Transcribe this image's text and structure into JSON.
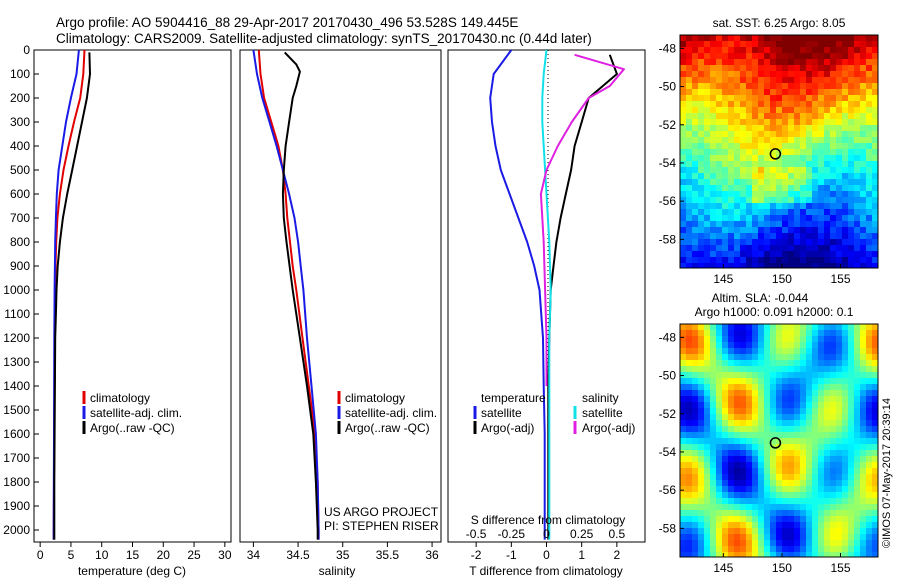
{
  "header": {
    "line1": "Argo profile: AO 5904416_88 29-Apr-2017 20170430_496 53.528S 149.445E",
    "line2": "Climatology: CARS2009. Satellite-adjusted climatology: synTS_20170430.nc (0.44d later)"
  },
  "colors": {
    "climatology": "#e00000",
    "satellite": "#1a1ae6",
    "argo": "#000000",
    "argo_salinity_diff": "#e020e0",
    "sat_salinity_diff": "#10e0e8"
  },
  "credits": {
    "project": "US ARGO PROJECT",
    "pi": "PI: STEPHEN RISER",
    "timestamp": "©IMOS 07-May-2017 20:39:14"
  },
  "maps": {
    "sst_title": "sat. SST: 6.25 Argo: 8.05",
    "sla_title1": "Altim. SLA: -0.044",
    "sla_title2": "Argo h1000: 0.091 h2000: 0.1",
    "lat_ticks": [
      "-48",
      "-50",
      "-52",
      "-54",
      "-56",
      "-58"
    ],
    "lon_ticks": [
      "145",
      "150",
      "155"
    ],
    "float_lon": 149.445,
    "float_lat": -53.528
  },
  "chart_data": [
    {
      "type": "line",
      "ylabel": "",
      "xlabel": "temperature (deg C)",
      "xlim": [
        -1,
        31
      ],
      "ylim": [
        2050,
        0
      ],
      "xticks": [
        "0",
        "5",
        "10",
        "15",
        "20",
        "25",
        "30"
      ],
      "yticks": [
        "0",
        "100",
        "200",
        "300",
        "400",
        "500",
        "600",
        "700",
        "800",
        "900",
        "1000",
        "1100",
        "1200",
        "1300",
        "1400",
        "1500",
        "1600",
        "1700",
        "1800",
        "1900",
        "2000"
      ],
      "legend": [
        "climatology",
        "satellite-adj. clim.",
        "Argo(..raw -QC)"
      ],
      "series": [
        {
          "name": "climatology",
          "color": "#e00000",
          "x": [
            7.2,
            7.0,
            6.5,
            5.5,
            4.6,
            3.8,
            3.2,
            2.8,
            2.6,
            2.5,
            2.45,
            2.4,
            2.35,
            2.3,
            2.25,
            2.2,
            2.2
          ],
          "y": [
            0,
            100,
            200,
            300,
            400,
            500,
            600,
            700,
            800,
            900,
            1000,
            1200,
            1400,
            1600,
            1800,
            2000,
            2040
          ]
        },
        {
          "name": "satellite-adj. clim.",
          "color": "#1a1ae6",
          "x": [
            6.3,
            5.9,
            5.0,
            4.2,
            3.6,
            3.0,
            2.7,
            2.55,
            2.45,
            2.4,
            2.35,
            2.3,
            2.25,
            2.2,
            2.2
          ],
          "y": [
            0,
            100,
            200,
            300,
            400,
            500,
            600,
            700,
            800,
            900,
            1000,
            1200,
            1600,
            2000,
            2040
          ]
        },
        {
          "name": "Argo(..raw -QC)",
          "color": "#000000",
          "x": [
            8.0,
            8.1,
            7.6,
            6.8,
            6.0,
            5.2,
            4.4,
            3.7,
            3.2,
            2.85,
            2.65,
            2.55,
            2.45,
            2.4,
            2.35,
            2.3,
            2.3
          ],
          "y": [
            10,
            100,
            200,
            300,
            400,
            500,
            600,
            700,
            800,
            900,
            1000,
            1100,
            1200,
            1400,
            1600,
            1800,
            2040
          ]
        }
      ]
    },
    {
      "type": "line",
      "xlabel": "salinity",
      "xlim": [
        33.85,
        36.1
      ],
      "ylim": [
        2050,
        0
      ],
      "xticks": [
        "34",
        "34.5",
        "35",
        "35.5",
        "36"
      ],
      "legend": [
        "climatology",
        "satellite-adj. clim.",
        "Argo(..raw -QC)"
      ],
      "series": [
        {
          "name": "climatology",
          "color": "#e00000",
          "x": [
            34.06,
            34.08,
            34.12,
            34.2,
            34.28,
            34.33,
            34.36,
            34.38,
            34.41,
            34.44,
            34.48,
            34.55,
            34.62,
            34.69,
            34.72,
            34.73,
            34.73
          ],
          "y": [
            0,
            100,
            200,
            300,
            400,
            500,
            600,
            700,
            800,
            900,
            1000,
            1200,
            1400,
            1600,
            1800,
            2000,
            2040
          ]
        },
        {
          "name": "satellite-adj. clim.",
          "color": "#1a1ae6",
          "x": [
            34.0,
            34.04,
            34.1,
            34.18,
            34.26,
            34.33,
            34.4,
            34.46,
            34.5,
            34.53,
            34.56,
            34.6,
            34.65,
            34.7,
            34.72,
            34.73,
            34.73
          ],
          "y": [
            0,
            100,
            200,
            300,
            400,
            500,
            600,
            700,
            800,
            900,
            1000,
            1200,
            1400,
            1600,
            1800,
            2000,
            2040
          ]
        },
        {
          "name": "Argo(..raw -QC)",
          "color": "#000000",
          "x": [
            34.35,
            34.48,
            34.52,
            34.48,
            34.44,
            34.4,
            34.36,
            34.34,
            34.33,
            34.34,
            34.37,
            34.44,
            34.52,
            34.6,
            34.67,
            34.7,
            34.72,
            34.72
          ],
          "y": [
            10,
            60,
            90,
            150,
            200,
            300,
            400,
            500,
            600,
            700,
            800,
            1000,
            1200,
            1400,
            1600,
            1800,
            2000,
            2040
          ]
        }
      ]
    },
    {
      "type": "line",
      "xlabel": "T difference from climatology",
      "x2label": "S difference from climatology",
      "xlim": [
        -2.8,
        2.8
      ],
      "x2lim": [
        -0.7,
        0.7
      ],
      "ylim": [
        2050,
        0
      ],
      "xticks": [
        "-2",
        "-1",
        "0",
        "1",
        "2"
      ],
      "x2ticks": [
        "-0.5",
        "-0.25",
        "0",
        "0.25",
        "0.5"
      ],
      "legend_left_title": "temperature",
      "legend_right_title": "salinity",
      "legend": [
        "satellite",
        "Argo(-adj)",
        "satellite",
        "Argo(-adj)"
      ],
      "series": [
        {
          "name": "temperature satellite",
          "color": "#1a1ae6",
          "x": [
            -1.0,
            -1.5,
            -1.6,
            -1.55,
            -1.45,
            -1.3,
            -1.05,
            -0.8,
            -0.55,
            -0.35,
            -0.2,
            -0.1,
            -0.08,
            -0.05,
            -0.05
          ],
          "y": [
            0,
            100,
            200,
            300,
            400,
            500,
            600,
            700,
            800,
            900,
            1000,
            1200,
            1400,
            1600,
            2040
          ]
        },
        {
          "name": "temperature Argo(-adj)",
          "color": "#000000",
          "x": [
            1.8,
            2.0,
            1.2,
            1.0,
            0.8,
            0.7,
            0.55,
            0.4,
            0.28,
            0.2,
            0.12,
            0.08,
            0.05,
            0.05,
            0.05
          ],
          "y": [
            20,
            100,
            200,
            300,
            400,
            500,
            600,
            700,
            800,
            900,
            1000,
            1200,
            1400,
            1600,
            2040
          ]
        },
        {
          "name": "salinity satellite",
          "color": "#10e0e8",
          "x": [
            0.0,
            -0.02,
            -0.03,
            -0.03,
            -0.02,
            -0.01,
            0.0,
            0.01,
            0.02,
            0.03,
            0.02,
            0.02,
            0.02
          ],
          "y": [
            0,
            100,
            200,
            300,
            400,
            500,
            600,
            700,
            800,
            1000,
            1200,
            1600,
            2040
          ]
        },
        {
          "name": "salinity Argo(-adj)",
          "color": "#e020e0",
          "x": [
            0.2,
            0.55,
            0.45,
            0.3,
            0.18,
            0.08,
            0.0,
            -0.04,
            -0.03,
            -0.02,
            -0.01,
            0.0,
            0.0
          ],
          "y": [
            20,
            80,
            150,
            200,
            300,
            400,
            500,
            600,
            700,
            800,
            1000,
            1200,
            1400
          ]
        }
      ]
    }
  ]
}
